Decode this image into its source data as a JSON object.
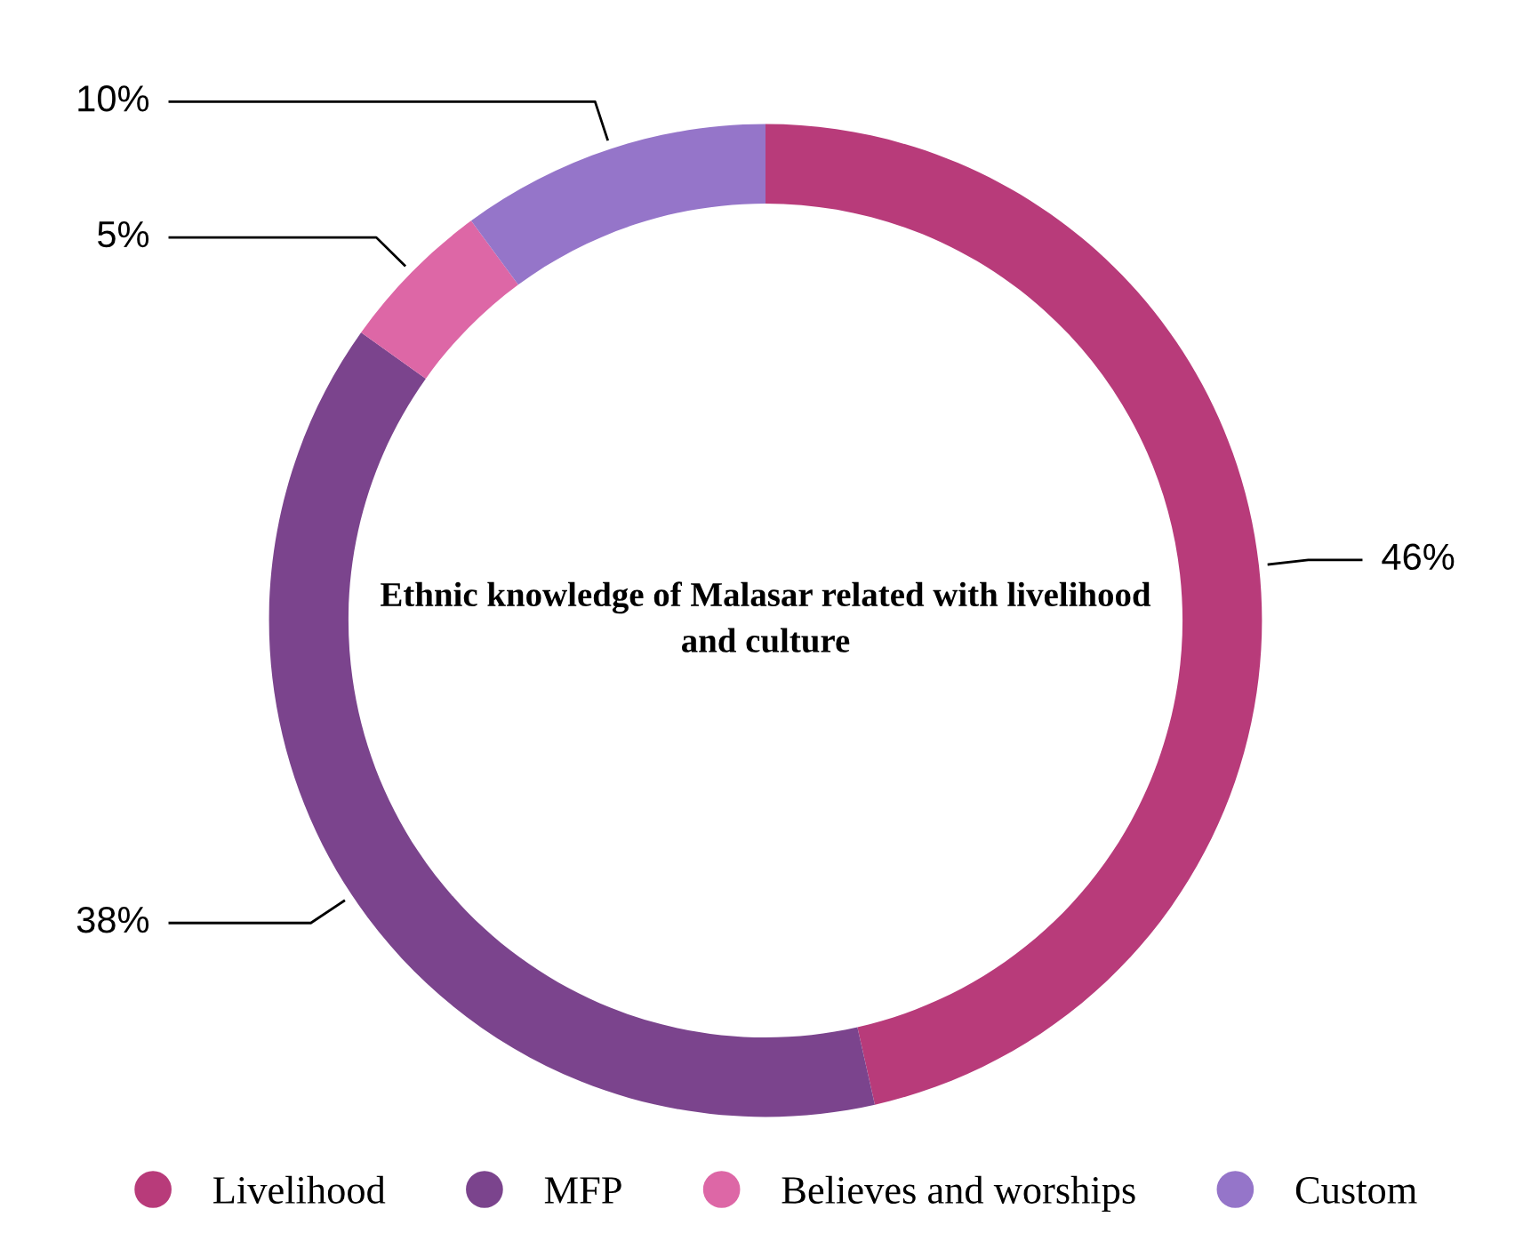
{
  "chart_data": {
    "type": "donut",
    "title": "Ethnic knowledge of Malasar related with livelihood and culture",
    "categories": [
      "Livelihood",
      "MFP",
      "Believes and worships",
      "Custom"
    ],
    "values": [
      46,
      38,
      5,
      10
    ],
    "value_labels": [
      "46%",
      "38%",
      "5%",
      "10%"
    ],
    "colors": [
      "#b83b7a",
      "#7b448d",
      "#dd67a6",
      "#9575c9"
    ],
    "legend": "bottom"
  }
}
